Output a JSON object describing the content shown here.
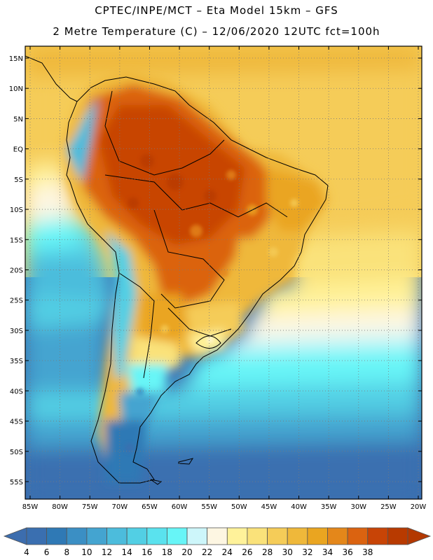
{
  "header": {
    "title_line1": "CPTEC/INPE/MCT –  Eta Model 15km – GFS",
    "title_line2": "2 Metre Temperature (C) – 12/06/2020 12UTC fct=100h"
  },
  "map": {
    "region": "South America",
    "lon_range": [
      -85,
      -20
    ],
    "lat_range": [
      -58,
      16
    ],
    "lat_ticks": [
      "15N",
      "10N",
      "5N",
      "EQ",
      "5S",
      "10S",
      "15S",
      "20S",
      "25S",
      "30S",
      "35S",
      "40S",
      "45S",
      "50S",
      "55S"
    ],
    "lat_tick_values": [
      15,
      10,
      5,
      0,
      -5,
      -10,
      -15,
      -20,
      -25,
      -30,
      -35,
      -40,
      -45,
      -50,
      -55
    ],
    "lon_ticks": [
      "85W",
      "80W",
      "75W",
      "70W",
      "65W",
      "60W",
      "55W",
      "50W",
      "45W",
      "40W",
      "35W",
      "30W",
      "25W",
      "20W"
    ],
    "lon_tick_values": [
      -85,
      -80,
      -75,
      -70,
      -65,
      -60,
      -55,
      -50,
      -45,
      -40,
      -35,
      -30,
      -25,
      -20
    ]
  },
  "colorbar": {
    "labels": [
      "4",
      "6",
      "8",
      "10",
      "12",
      "14",
      "16",
      "18",
      "20",
      "22",
      "24",
      "26",
      "28",
      "30",
      "32",
      "34",
      "36",
      "38"
    ],
    "colors": [
      "#3a6fb0",
      "#2f79b5",
      "#3b8fc4",
      "#44a4d0",
      "#4cbcdc",
      "#52cfe4",
      "#5ae2ee",
      "#67f5f7",
      "#cdf6fa",
      "#fdf6e2",
      "#fff29a",
      "#fae27a",
      "#f5cc58",
      "#efb83a",
      "#eaa520",
      "#e4871a",
      "#db6310",
      "#c84406",
      "#b83a00"
    ],
    "low_color": "#3c6dae",
    "high_color": "#b33800"
  }
}
